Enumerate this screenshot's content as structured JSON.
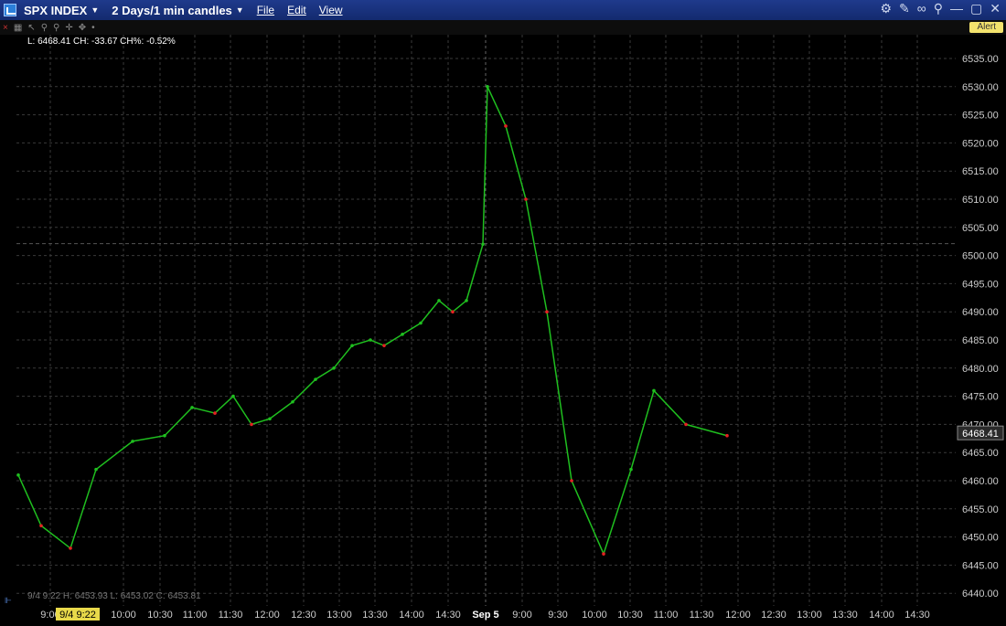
{
  "window": {
    "symbol": "SPX INDEX",
    "timeframe": "2 Days/1 min candles",
    "menus": [
      "File",
      "Edit",
      "View"
    ],
    "alert_label": "Alert"
  },
  "status": {
    "top_info": "L: 6468.41 CH: -33.67 CH%: -0.52%",
    "bottom_ohlc": "9/4 9:22   H: 6453.93   L: 6453.02   C: 6453.81",
    "crosshair_time": "9/4 9:22"
  },
  "colors": {
    "up": "#1fbf1f",
    "down": "#e52222",
    "grid": "#3a3a3a",
    "text": "#cccccc",
    "price_label_bg": "#2a2a2a"
  },
  "chart_data": {
    "type": "line",
    "title": "",
    "xlabel": "",
    "ylabel": "",
    "x_tick_labels": [
      "9:00",
      "9/4 9:22",
      "10:00",
      "10:30",
      "11:00",
      "11:30",
      "12:00",
      "12:30",
      "13:00",
      "13:30",
      "14:00",
      "14:30",
      "Sep 5",
      "9:00",
      "9:30",
      "10:00",
      "10:30",
      "11:00",
      "11:30",
      "12:00",
      "12:30",
      "13:00",
      "13:30",
      "14:00",
      "14:30"
    ],
    "y_ticks": [
      6440,
      6445,
      6450,
      6455,
      6460,
      6465,
      6470,
      6475,
      6480,
      6485,
      6490,
      6495,
      6500,
      6505,
      6510,
      6515,
      6520,
      6525,
      6530,
      6535
    ],
    "ylim": [
      6438,
      6537
    ],
    "last_price_label": "6468.41",
    "previous_close_reference": 6502.1,
    "series": [
      {
        "x": [
          "9/4 9:30",
          "9/4 9:45",
          "9/4 10:00",
          "9/4 10:15",
          "9/4 10:30",
          "9/4 10:45",
          "9/4 11:00",
          "9/4 11:15",
          "9/4 11:30",
          "9/4 11:45",
          "9/4 12:00",
          "9/4 12:15",
          "9/4 12:30",
          "9/4 12:45",
          "9/4 13:00",
          "9/4 13:15",
          "9/4 13:30",
          "9/4 13:45",
          "9/4 14:00",
          "9/4 14:15",
          "9/4 14:30",
          "9/4 14:45",
          "9/4 16:00",
          "9/5 9:30",
          "9/5 9:45",
          "9/5 10:00",
          "9/5 10:15",
          "9/5 10:30",
          "9/5 10:45",
          "9/5 11:00",
          "9/5 11:15",
          "9/5 11:30",
          "9/5 11:45"
        ],
        "values": [
          6461,
          6452,
          6448,
          6462,
          6467,
          6468,
          6473,
          6472,
          6475,
          6470,
          6471,
          6474,
          6478,
          6480,
          6484,
          6485,
          6484,
          6486,
          6488,
          6492,
          6490,
          6492,
          6502,
          6530,
          6523,
          6510,
          6490,
          6460,
          6447,
          6462,
          6476,
          6470,
          6468
        ]
      }
    ]
  }
}
